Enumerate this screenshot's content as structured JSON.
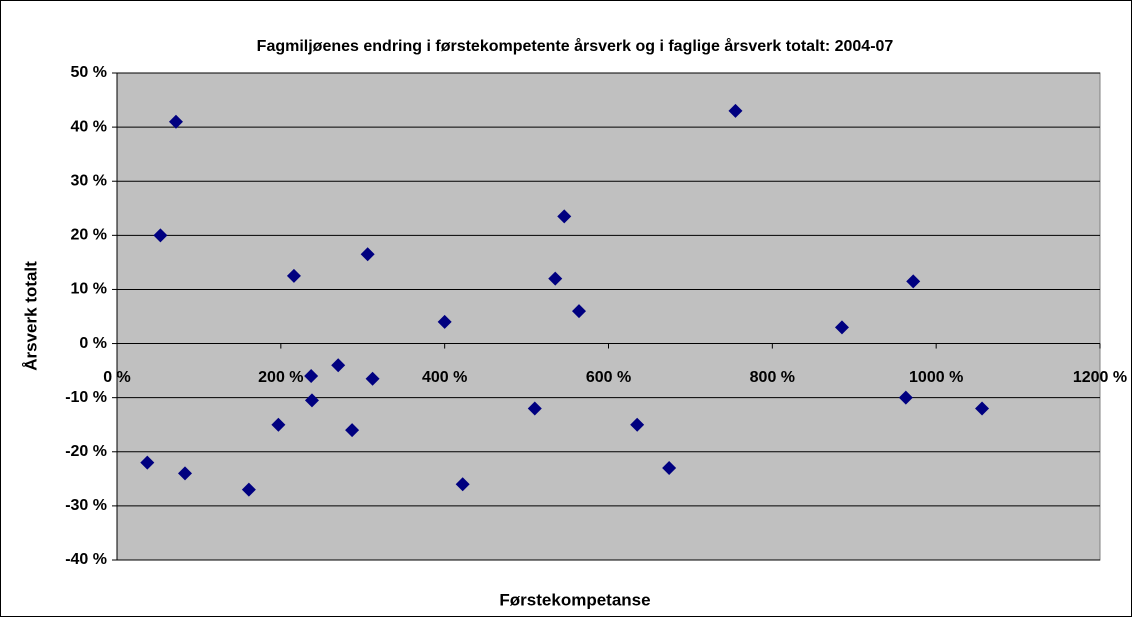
{
  "chart_data": {
    "type": "scatter",
    "title": "Fagmiljøenes endring i førstekompetente årsverk og i faglige årsverk totalt: 2004-07",
    "x_label": "Førstekompetanse",
    "y_label": "Årsverk totalt",
    "color": "#000080",
    "grid": true,
    "xlim": [
      0,
      1200
    ],
    "ylim": [
      -40,
      50
    ],
    "xticks": [
      {
        "value": 0,
        "label": "0 %"
      },
      {
        "value": 200,
        "label": "200 %"
      },
      {
        "value": 400,
        "label": "400 %"
      },
      {
        "value": 600,
        "label": "600 %"
      },
      {
        "value": 800,
        "label": "800 %"
      },
      {
        "value": 1000,
        "label": "1000 %"
      },
      {
        "value": 1200,
        "label": "1200 %"
      }
    ],
    "yticks": [
      {
        "value": -40,
        "label": "-40 %"
      },
      {
        "value": -30,
        "label": "-30 %"
      },
      {
        "value": -20,
        "label": "-20 %"
      },
      {
        "value": -10,
        "label": "-10 %"
      },
      {
        "value": 0,
        "label": "0 %"
      },
      {
        "value": 10,
        "label": "10 %"
      },
      {
        "value": 20,
        "label": "20 %"
      },
      {
        "value": 30,
        "label": "30 %"
      },
      {
        "value": 40,
        "label": "40 %"
      },
      {
        "value": 50,
        "label": "50 %"
      }
    ],
    "x": [
      37,
      53,
      72,
      83,
      161,
      197,
      216,
      237,
      238,
      270,
      287,
      306,
      312,
      400,
      422,
      510,
      535,
      546,
      564,
      635,
      674,
      755,
      885,
      963,
      972,
      1056
    ],
    "values": [
      -22,
      20,
      41,
      -24,
      -27,
      -15,
      12.5,
      -6,
      -10.5,
      -4,
      -16,
      16.5,
      -6.5,
      4,
      -26,
      -12,
      12,
      23.5,
      6,
      -15,
      -23,
      43,
      3,
      -10,
      11.5,
      -12
    ]
  }
}
